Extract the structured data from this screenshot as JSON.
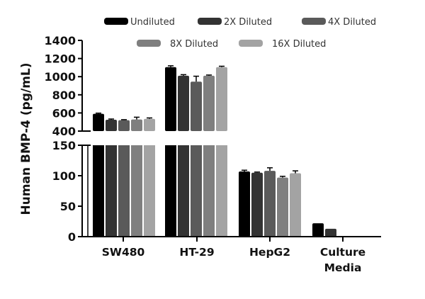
{
  "chart_data": {
    "type": "bar",
    "title": "",
    "xlabel": "",
    "ylabel": "Human BMP-4 (pg/mL)",
    "categories": [
      "SW480",
      "HT-29",
      "HepG2",
      "Culture Media"
    ],
    "category_lines": [
      [
        "SW480"
      ],
      [
        "HT-29"
      ],
      [
        "HepG2"
      ],
      [
        "Culture",
        "Media"
      ]
    ],
    "series": [
      {
        "name": "Undiluted",
        "color": "#000000",
        "values": [
          590,
          1105,
          107,
          22
        ],
        "errors": [
          8,
          15,
          2,
          0
        ]
      },
      {
        "name": "2X Diluted",
        "color": "#333333",
        "values": [
          525,
          1010,
          105,
          13
        ],
        "errors": [
          8,
          12,
          1,
          0
        ]
      },
      {
        "name": "4X Diluted",
        "color": "#5a5a5a",
        "values": [
          520,
          945,
          108,
          null
        ],
        "errors": [
          6,
          60,
          5,
          0
        ]
      },
      {
        "name": "8X Diluted",
        "color": "#7f7f7f",
        "values": [
          528,
          1010,
          97,
          null
        ],
        "errors": [
          25,
          8,
          2,
          0
        ]
      },
      {
        "name": "16X Diluted",
        "color": "#a3a3a3",
        "values": [
          535,
          1105,
          104,
          null
        ],
        "errors": [
          10,
          10,
          4,
          0
        ]
      }
    ],
    "y_axis_segments": [
      {
        "range": [
          0,
          150
        ],
        "ticks": [
          0,
          50,
          100,
          150
        ]
      },
      {
        "range": [
          400,
          1400
        ],
        "ticks": [
          400,
          600,
          800,
          1000,
          1200,
          1400
        ]
      }
    ],
    "axis_break": "between 150 and 400",
    "grid": false,
    "legend_position": "top"
  }
}
